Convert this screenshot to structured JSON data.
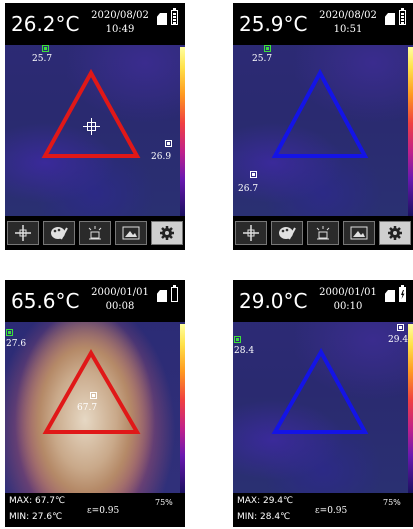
{
  "colors": {
    "triangle_red": "#e01818",
    "triangle_blue": "#1414e6",
    "marker_green": "#3ce03c",
    "marker_white": "#ffffff"
  },
  "screens": [
    {
      "temperature": "26.2°C",
      "date": "2020/08/02",
      "time": "10:49",
      "battery": "full",
      "markers": [
        {
          "type": "green",
          "label": "25.7"
        },
        {
          "type": "white",
          "label": "26.9"
        }
      ],
      "toolbar": [
        "crosshair-icon",
        "palette-icon",
        "brightness-icon",
        "image-icon",
        "gear-icon"
      ]
    },
    {
      "temperature": "25.9°C",
      "date": "2020/08/02",
      "time": "10:51",
      "battery": "full",
      "markers": [
        {
          "type": "green",
          "label": "25.7"
        },
        {
          "type": "white",
          "label": "26.7"
        }
      ],
      "toolbar": [
        "crosshair-icon",
        "palette-icon",
        "brightness-icon",
        "image-icon",
        "gear-icon"
      ]
    },
    {
      "temperature": "65.6°C",
      "date": "2000/01/01",
      "time": "00:08",
      "battery": "empty",
      "markers": [
        {
          "type": "green",
          "label": "27.6"
        },
        {
          "type": "white",
          "label": "67.7"
        }
      ],
      "max": "MAX: 67.7℃",
      "min": "MIN: 27.6℃",
      "emissivity": "ε=0.95",
      "percent": "75%"
    },
    {
      "temperature": "29.0°C",
      "date": "2000/01/01",
      "time": "00:10",
      "battery": "charging",
      "markers": [
        {
          "type": "green",
          "label": "28.4"
        },
        {
          "type": "white",
          "label": "29.4"
        }
      ],
      "max": "MAX: 29.4℃",
      "min": "MIN: 28.4℃",
      "emissivity": "ε=0.95",
      "percent": "75%"
    }
  ]
}
